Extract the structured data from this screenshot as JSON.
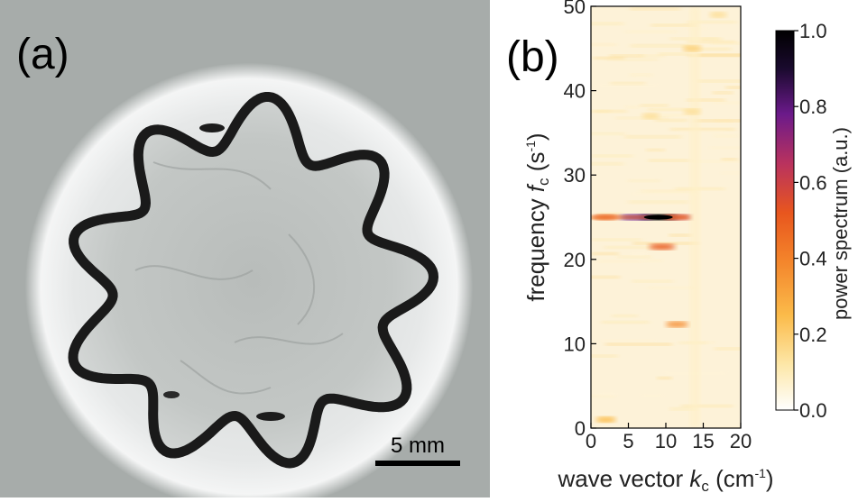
{
  "panel_a": {
    "label": "(a)",
    "scale_bar_label": "5 mm",
    "description_icon": "circular-fingering-pattern-icon"
  },
  "panel_b": {
    "label": "(b)"
  },
  "chart_data": {
    "type": "heatmap",
    "xlabel_prefix": "wave vector ",
    "xlabel_var": "k",
    "xlabel_sub": "c",
    "xlabel_unit_open": " (cm",
    "xlabel_unit_sup": "-1",
    "xlabel_unit_close": ")",
    "ylabel_prefix": "frequency ",
    "ylabel_var": "f",
    "ylabel_sub": "c",
    "ylabel_unit_open": " (s",
    "ylabel_unit_sup": "-1",
    "ylabel_unit_close": ")",
    "xlim": [
      0,
      20
    ],
    "ylim": [
      0,
      50
    ],
    "x_ticks": [
      "0",
      "5",
      "10",
      "15",
      "20"
    ],
    "y_ticks": [
      "0",
      "10",
      "20",
      "30",
      "40",
      "50"
    ],
    "colorbar": {
      "label": "power spectrum (a.u.)",
      "ticks": [
        "0.0",
        "0.2",
        "0.4",
        "0.6",
        "0.8",
        "1.0"
      ],
      "range": [
        0,
        1
      ],
      "colormap": [
        "#ffffff",
        "#fde7a8",
        "#fbbb4a",
        "#f3822a",
        "#e8561e",
        "#b9325e",
        "#6b1a8a",
        "#1a0a2e",
        "#000000"
      ]
    },
    "peaks": [
      {
        "k": 9.0,
        "f": 25.0,
        "power": 1.0
      },
      {
        "k": 6.0,
        "f": 25.0,
        "power": 0.75
      },
      {
        "k": 11.5,
        "f": 25.0,
        "power": 0.55
      },
      {
        "k": 2.0,
        "f": 25.0,
        "power": 0.45
      },
      {
        "k": 9.5,
        "f": 21.5,
        "power": 0.5
      },
      {
        "k": 11.5,
        "f": 12.3,
        "power": 0.35
      },
      {
        "k": 8.0,
        "f": 37.0,
        "power": 0.15
      },
      {
        "k": 13.5,
        "f": 45.0,
        "power": 0.2
      },
      {
        "k": 13.5,
        "f": 37.5,
        "power": 0.15
      },
      {
        "k": 2.0,
        "f": 1.0,
        "power": 0.25
      },
      {
        "k": 17.0,
        "f": 49.0,
        "power": 0.15
      }
    ]
  }
}
